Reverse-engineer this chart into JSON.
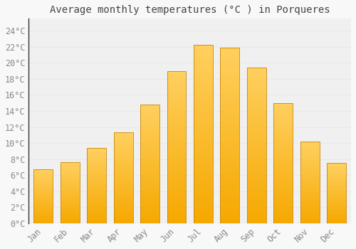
{
  "months": [
    "Jan",
    "Feb",
    "Mar",
    "Apr",
    "May",
    "Jun",
    "Jul",
    "Aug",
    "Sep",
    "Oct",
    "Nov",
    "Dec"
  ],
  "temperatures": [
    6.7,
    7.6,
    9.4,
    11.3,
    14.8,
    19.0,
    22.2,
    21.9,
    19.4,
    15.0,
    10.2,
    7.5
  ],
  "bar_color_bottom": "#F5A800",
  "bar_color_top": "#FFD060",
  "bar_edge_color": "#C8860A",
  "title": "Average monthly temperatures (°C ) in Porqueres",
  "yticks": [
    0,
    2,
    4,
    6,
    8,
    10,
    12,
    14,
    16,
    18,
    20,
    22,
    24
  ],
  "ytick_labels": [
    "0°C",
    "2°C",
    "4°C",
    "6°C",
    "8°C",
    "10°C",
    "12°C",
    "14°C",
    "16°C",
    "18°C",
    "20°C",
    "22°C",
    "24°C"
  ],
  "ylim": [
    0,
    25.5
  ],
  "background_color": "#f8f8f8",
  "plot_bg_color": "#f0f0f0",
  "grid_color": "#e8e8e8",
  "title_fontsize": 10,
  "tick_fontsize": 8.5,
  "font_family": "monospace",
  "bar_width": 0.72
}
